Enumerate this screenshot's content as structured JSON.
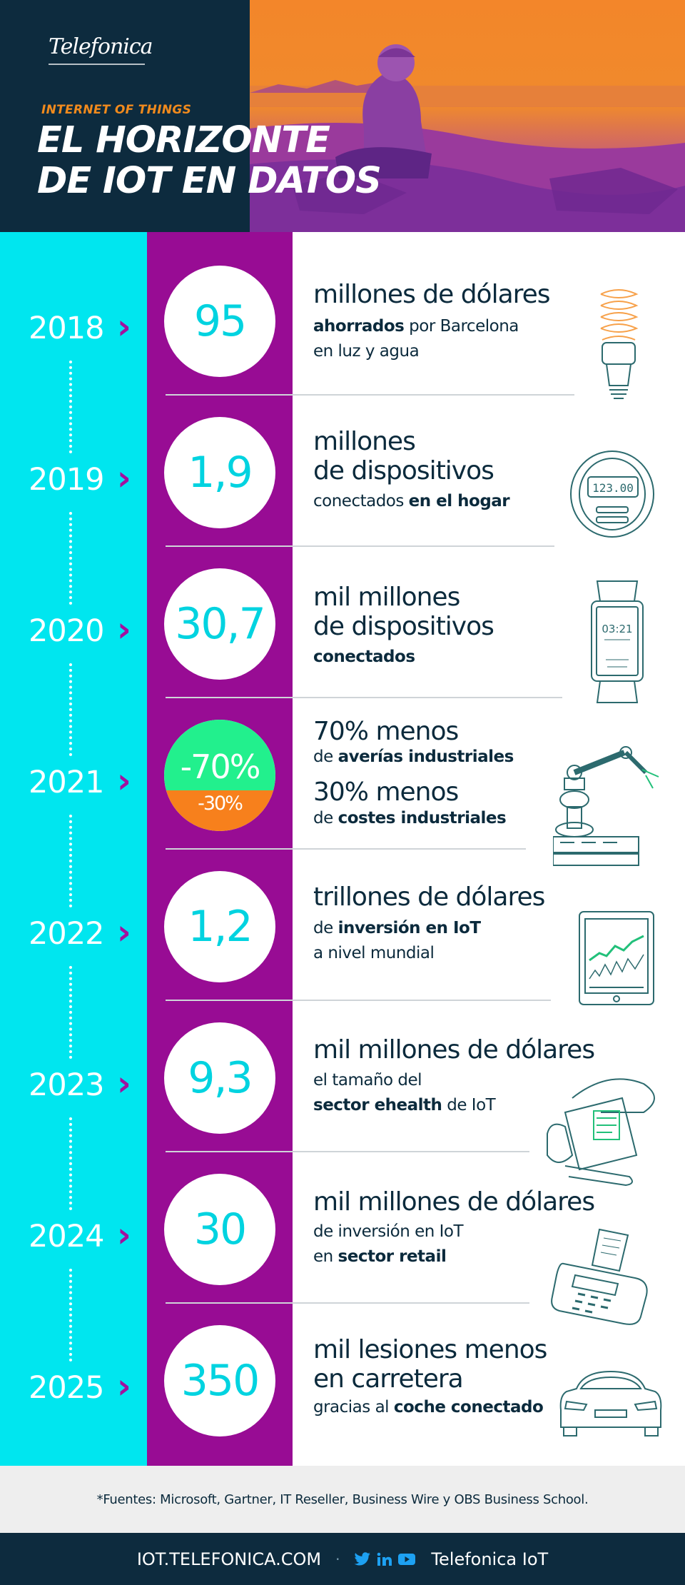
{
  "header": {
    "logo": "Telefonica",
    "kicker": "INTERNET OF THINGS",
    "title_line1": "EL HORIZONTE",
    "title_line2": "DE IOT EN DATOS"
  },
  "colors": {
    "cyan": "#00e6ef",
    "purple": "#980c94",
    "navy": "#0d2b3e",
    "orange": "#f7801c",
    "green": "#22f08d"
  },
  "items": [
    {
      "year": "2018",
      "value": "95",
      "headline1": "millones de dólares",
      "sub1_bold": "ahorrados",
      "sub1_rest": " por Barcelona",
      "sub2": "en luz y agua",
      "icon": "lightbulb-icon"
    },
    {
      "year": "2019",
      "value": "1,9",
      "headline1": "millones",
      "headline2": "de dispositivos",
      "sub1_pre": "conectados ",
      "sub1_bold": "en el hogar",
      "icon": "smart-meter-icon",
      "meter_reading": "123.00"
    },
    {
      "year": "2020",
      "value": "30,7",
      "headline1": "mil millones",
      "headline2": "de dispositivos",
      "sub1_bold": "conectados",
      "icon": "smartwatch-icon",
      "watch_time": "03:21"
    },
    {
      "year": "2021",
      "value_top": "-70%",
      "value_bottom": "-30%",
      "headline1": "70% menos",
      "sub1_pre": "de ",
      "sub1_bold": "averías industriales",
      "headline2": "30% menos",
      "sub2_pre": "de ",
      "sub2_bold": "costes industriales",
      "icon": "robot-arm-icon"
    },
    {
      "year": "2022",
      "value": "1,2",
      "headline1": "trillones de dólares",
      "sub1_pre": "de ",
      "sub1_bold": "inversión en IoT",
      "sub2": "a nivel mundial",
      "icon": "tablet-chart-icon"
    },
    {
      "year": "2023",
      "value": "9,3",
      "headline1": "mil millones de dólares",
      "sub1": "el tamaño del",
      "sub2_bold": "sector ehealth",
      "sub2_rest": " de IoT",
      "icon": "blood-pressure-monitor-icon"
    },
    {
      "year": "2024",
      "value": "30",
      "headline1": "mil millones de dólares",
      "sub1": "de inversión en IoT",
      "sub2_pre": "en ",
      "sub2_bold": "sector retail",
      "icon": "payment-terminal-icon"
    },
    {
      "year": "2025",
      "value": "350",
      "headline1": "mil lesiones menos",
      "headline2": "en carretera",
      "sub1_pre": "gracias al ",
      "sub1_bold": "coche conectado",
      "icon": "car-icon"
    }
  ],
  "sources": "*Fuentes: Microsoft, Gartner, IT Reseller, Business Wire y OBS Business School.",
  "footer": {
    "url": "IOT.TELEFONICA.COM",
    "separator": "·",
    "brand": "Telefonica IoT"
  }
}
